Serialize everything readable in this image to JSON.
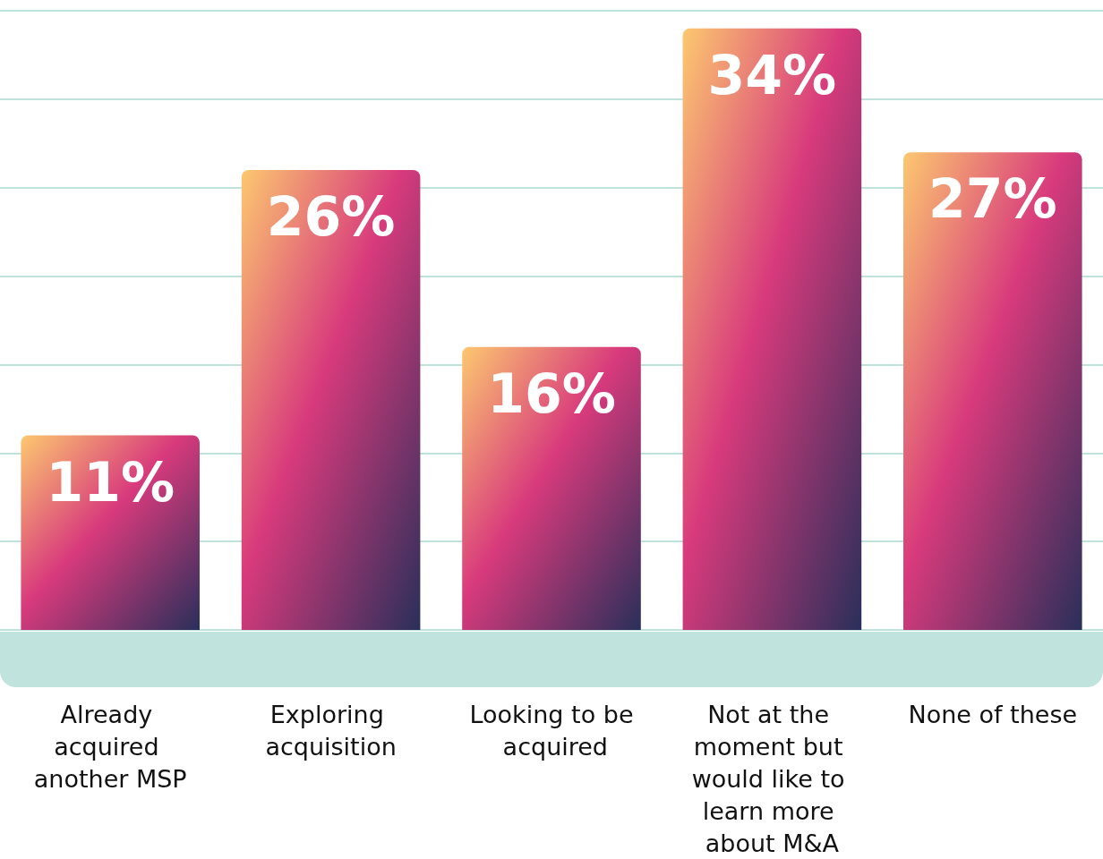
{
  "chart_data": {
    "type": "bar",
    "categories": [
      "Already acquired another MSP",
      "Exploring acquisition",
      "Looking to be acquired",
      "Not at the moment but would like to learn more about M&A",
      "None of these"
    ],
    "values": [
      11,
      26,
      16,
      34,
      27
    ],
    "color": "#d83a7c",
    "value_labels": [
      "11%",
      "26%",
      "16%",
      "34%",
      "27%"
    ],
    "tick_labels": "x",
    "grid": "y"
  }
}
